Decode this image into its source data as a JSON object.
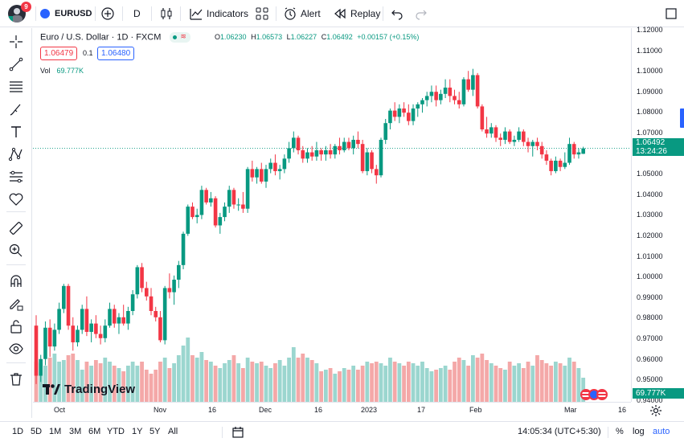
{
  "topbar": {
    "notification_count": "9",
    "symbol": "EURUSD",
    "interval": "D",
    "indicators_label": "Indicators",
    "alert_label": "Alert",
    "replay_label": "Replay"
  },
  "legend": {
    "title": "Euro / U.S. Dollar · 1D · FXCM",
    "open_key": "O",
    "open": "1.06230",
    "high_key": "H",
    "high": "1.06573",
    "low_key": "L",
    "low": "1.06227",
    "close_key": "C",
    "close": "1.06492",
    "change": "+0.00157 (+0.15%)",
    "sell_price": "1.06479",
    "spread": "0.1",
    "buy_price": "1.06480",
    "vol_label": "Vol",
    "vol_value": "69.777K"
  },
  "price_axis": {
    "ticks": [
      "1.12000",
      "1.11000",
      "1.10000",
      "1.09000",
      "1.08000",
      "1.07000",
      "1.06000",
      "1.05000",
      "1.04000",
      "1.03000",
      "1.02000",
      "1.01000",
      "1.00000",
      "0.99000",
      "0.98000",
      "0.97000",
      "0.96000",
      "0.95000",
      "0.94000"
    ],
    "current_price": "1.06492",
    "countdown": "13:24:26",
    "volume_tag": "69.777K"
  },
  "time_axis": {
    "labels": [
      "Oct",
      "Nov",
      "16",
      "Dec",
      "16",
      "2023",
      "17",
      "Feb",
      "Mar",
      "16"
    ]
  },
  "bottombar": {
    "ranges": [
      "1D",
      "5D",
      "1M",
      "3M",
      "6M",
      "YTD",
      "1Y",
      "5Y",
      "All"
    ],
    "clock": "14:05:34 (UTC+5:30)",
    "percent_label": "%",
    "log_label": "log",
    "auto_label": "auto"
  },
  "branding": {
    "logo_text": "TradingView"
  },
  "colors": {
    "up": "#089981",
    "down": "#f23645",
    "vol_up": "#9bd6cf",
    "vol_down": "#f4a8a8",
    "accent": "#2962ff"
  },
  "chart_data": {
    "type": "candlestick",
    "ylim": [
      0.9435,
      1.1225
    ],
    "last_price": 1.06492,
    "candles": [
      [
        0.98,
        0.985,
        0.952,
        0.956,
        50
      ],
      [
        0.956,
        0.966,
        0.953,
        0.964,
        48
      ],
      [
        0.964,
        0.982,
        0.961,
        0.979,
        45
      ],
      [
        0.979,
        0.983,
        0.965,
        0.97,
        55
      ],
      [
        0.97,
        0.981,
        0.968,
        0.978,
        60
      ],
      [
        0.978,
        0.991,
        0.976,
        0.988,
        50
      ],
      [
        0.988,
        1.0,
        0.986,
        0.999,
        52
      ],
      [
        0.999,
        1.0,
        0.978,
        0.98,
        58
      ],
      [
        0.98,
        0.984,
        0.968,
        0.972,
        60
      ],
      [
        0.972,
        0.98,
        0.97,
        0.978,
        52
      ],
      [
        0.978,
        0.99,
        0.976,
        0.988,
        40
      ],
      [
        0.988,
        0.994,
        0.975,
        0.977,
        50
      ],
      [
        0.977,
        0.983,
        0.972,
        0.981,
        45
      ],
      [
        0.981,
        0.985,
        0.974,
        0.976,
        52
      ],
      [
        0.976,
        0.98,
        0.971,
        0.974,
        48
      ],
      [
        0.974,
        0.983,
        0.972,
        0.98,
        55
      ],
      [
        0.98,
        0.991,
        0.979,
        0.988,
        50
      ],
      [
        0.988,
        0.99,
        0.979,
        0.981,
        45
      ],
      [
        0.981,
        0.986,
        0.976,
        0.984,
        42
      ],
      [
        0.984,
        0.99,
        0.98,
        0.981,
        38
      ],
      [
        0.981,
        0.989,
        0.978,
        0.987,
        45
      ],
      [
        0.987,
        0.997,
        0.985,
        0.995,
        50
      ],
      [
        0.995,
        1.009,
        0.993,
        1.008,
        45
      ],
      [
        1.008,
        1.01,
        0.996,
        0.998,
        50
      ],
      [
        0.998,
        1.001,
        0.992,
        0.994,
        40
      ],
      [
        0.994,
        0.998,
        0.985,
        0.987,
        35
      ],
      [
        0.987,
        0.989,
        0.982,
        0.984,
        40
      ],
      [
        0.984,
        0.987,
        0.972,
        0.973,
        50
      ],
      [
        0.973,
        0.999,
        0.971,
        0.998,
        55
      ],
      [
        0.998,
        1.005,
        0.993,
        0.996,
        42
      ],
      [
        0.996,
        1.004,
        0.99,
        1.002,
        48
      ],
      [
        1.002,
        1.011,
        0.998,
        1.009,
        58
      ],
      [
        1.009,
        1.025,
        1.007,
        1.024,
        70
      ],
      [
        1.024,
        1.038,
        1.023,
        1.037,
        80
      ],
      [
        1.037,
        1.039,
        1.031,
        1.032,
        58
      ],
      [
        1.032,
        1.036,
        1.029,
        1.033,
        55
      ],
      [
        1.033,
        1.047,
        1.031,
        1.045,
        62
      ],
      [
        1.045,
        1.046,
        1.038,
        1.039,
        52
      ],
      [
        1.039,
        1.044,
        1.037,
        1.041,
        50
      ],
      [
        1.041,
        1.042,
        1.027,
        1.028,
        45
      ],
      [
        1.028,
        1.034,
        1.024,
        1.032,
        42
      ],
      [
        1.032,
        1.039,
        1.03,
        1.037,
        48
      ],
      [
        1.037,
        1.047,
        1.034,
        1.045,
        52
      ],
      [
        1.045,
        1.046,
        1.036,
        1.038,
        58
      ],
      [
        1.038,
        1.041,
        1.035,
        1.038,
        48
      ],
      [
        1.038,
        1.044,
        1.034,
        1.036,
        42
      ],
      [
        1.036,
        1.056,
        1.034,
        1.055,
        55
      ],
      [
        1.055,
        1.059,
        1.049,
        1.051,
        50
      ],
      [
        1.051,
        1.056,
        1.048,
        1.055,
        48
      ],
      [
        1.055,
        1.058,
        1.048,
        1.049,
        50
      ],
      [
        1.049,
        1.057,
        1.046,
        1.055,
        45
      ],
      [
        1.055,
        1.06,
        1.053,
        1.058,
        42
      ],
      [
        1.058,
        1.062,
        1.052,
        1.054,
        48
      ],
      [
        1.054,
        1.057,
        1.05,
        1.055,
        52
      ],
      [
        1.055,
        1.062,
        1.053,
        1.06,
        45
      ],
      [
        1.06,
        1.068,
        1.058,
        1.065,
        55
      ],
      [
        1.065,
        1.073,
        1.063,
        1.07,
        68
      ],
      [
        1.07,
        1.071,
        1.062,
        1.064,
        55
      ],
      [
        1.064,
        1.066,
        1.058,
        1.06,
        60
      ],
      [
        1.06,
        1.065,
        1.058,
        1.063,
        55
      ],
      [
        1.063,
        1.066,
        1.059,
        1.061,
        52
      ],
      [
        1.061,
        1.068,
        1.059,
        1.064,
        48
      ],
      [
        1.064,
        1.065,
        1.059,
        1.062,
        38
      ],
      [
        1.062,
        1.066,
        1.059,
        1.064,
        40
      ],
      [
        1.064,
        1.067,
        1.06,
        1.062,
        42
      ],
      [
        1.062,
        1.067,
        1.06,
        1.066,
        35
      ],
      [
        1.066,
        1.07,
        1.062,
        1.064,
        38
      ],
      [
        1.064,
        1.07,
        1.063,
        1.068,
        42
      ],
      [
        1.068,
        1.07,
        1.064,
        1.065,
        40
      ],
      [
        1.065,
        1.071,
        1.062,
        1.069,
        45
      ],
      [
        1.069,
        1.073,
        1.065,
        1.067,
        40
      ],
      [
        1.067,
        1.069,
        1.053,
        1.054,
        45
      ],
      [
        1.054,
        1.065,
        1.052,
        1.063,
        50
      ],
      [
        1.063,
        1.064,
        1.053,
        1.055,
        48
      ],
      [
        1.055,
        1.057,
        1.048,
        1.052,
        50
      ],
      [
        1.052,
        1.07,
        1.051,
        1.069,
        48
      ],
      [
        1.069,
        1.079,
        1.067,
        1.077,
        45
      ],
      [
        1.077,
        1.084,
        1.074,
        1.083,
        55
      ],
      [
        1.083,
        1.087,
        1.078,
        1.08,
        50
      ],
      [
        1.08,
        1.086,
        1.077,
        1.084,
        48
      ],
      [
        1.084,
        1.087,
        1.08,
        1.082,
        45
      ],
      [
        1.082,
        1.086,
        1.076,
        1.078,
        50
      ],
      [
        1.078,
        1.086,
        1.076,
        1.084,
        48
      ],
      [
        1.084,
        1.087,
        1.08,
        1.086,
        45
      ],
      [
        1.086,
        1.089,
        1.082,
        1.088,
        50
      ],
      [
        1.088,
        1.092,
        1.085,
        1.09,
        42
      ],
      [
        1.09,
        1.095,
        1.087,
        1.092,
        38
      ],
      [
        1.092,
        1.095,
        1.085,
        1.088,
        40
      ],
      [
        1.088,
        1.093,
        1.086,
        1.091,
        42
      ],
      [
        1.091,
        1.098,
        1.089,
        1.094,
        45
      ],
      [
        1.094,
        1.098,
        1.087,
        1.09,
        40
      ],
      [
        1.09,
        1.093,
        1.086,
        1.088,
        50
      ],
      [
        1.088,
        1.092,
        1.084,
        1.086,
        55
      ],
      [
        1.086,
        1.099,
        1.085,
        1.098,
        52
      ],
      [
        1.098,
        1.102,
        1.092,
        1.093,
        45
      ],
      [
        1.093,
        1.103,
        1.09,
        1.1,
        58
      ],
      [
        1.1,
        1.101,
        1.084,
        1.085,
        55
      ],
      [
        1.085,
        1.086,
        1.073,
        1.074,
        60
      ],
      [
        1.074,
        1.08,
        1.07,
        1.072,
        52
      ],
      [
        1.072,
        1.077,
        1.07,
        1.075,
        48
      ],
      [
        1.075,
        1.076,
        1.068,
        1.07,
        45
      ],
      [
        1.07,
        1.072,
        1.066,
        1.069,
        42
      ],
      [
        1.069,
        1.075,
        1.067,
        1.073,
        40
      ],
      [
        1.073,
        1.074,
        1.067,
        1.068,
        50
      ],
      [
        1.068,
        1.071,
        1.066,
        1.069,
        45
      ],
      [
        1.069,
        1.075,
        1.068,
        1.073,
        48
      ],
      [
        1.073,
        1.074,
        1.066,
        1.068,
        42
      ],
      [
        1.068,
        1.07,
        1.063,
        1.066,
        50
      ],
      [
        1.066,
        1.069,
        1.061,
        1.068,
        45
      ],
      [
        1.068,
        1.07,
        1.064,
        1.066,
        58
      ],
      [
        1.066,
        1.068,
        1.06,
        1.062,
        52
      ],
      [
        1.062,
        1.064,
        1.057,
        1.059,
        48
      ],
      [
        1.059,
        1.06,
        1.052,
        1.054,
        45
      ],
      [
        1.054,
        1.061,
        1.053,
        1.059,
        50
      ],
      [
        1.059,
        1.06,
        1.054,
        1.056,
        48
      ],
      [
        1.056,
        1.063,
        1.055,
        1.058,
        45
      ],
      [
        1.058,
        1.07,
        1.057,
        1.067,
        55
      ],
      [
        1.067,
        1.068,
        1.06,
        1.062,
        50
      ],
      [
        1.062,
        1.065,
        1.06,
        1.063,
        42
      ],
      [
        1.0623,
        1.0657,
        1.0622,
        1.0649,
        30
      ]
    ]
  }
}
